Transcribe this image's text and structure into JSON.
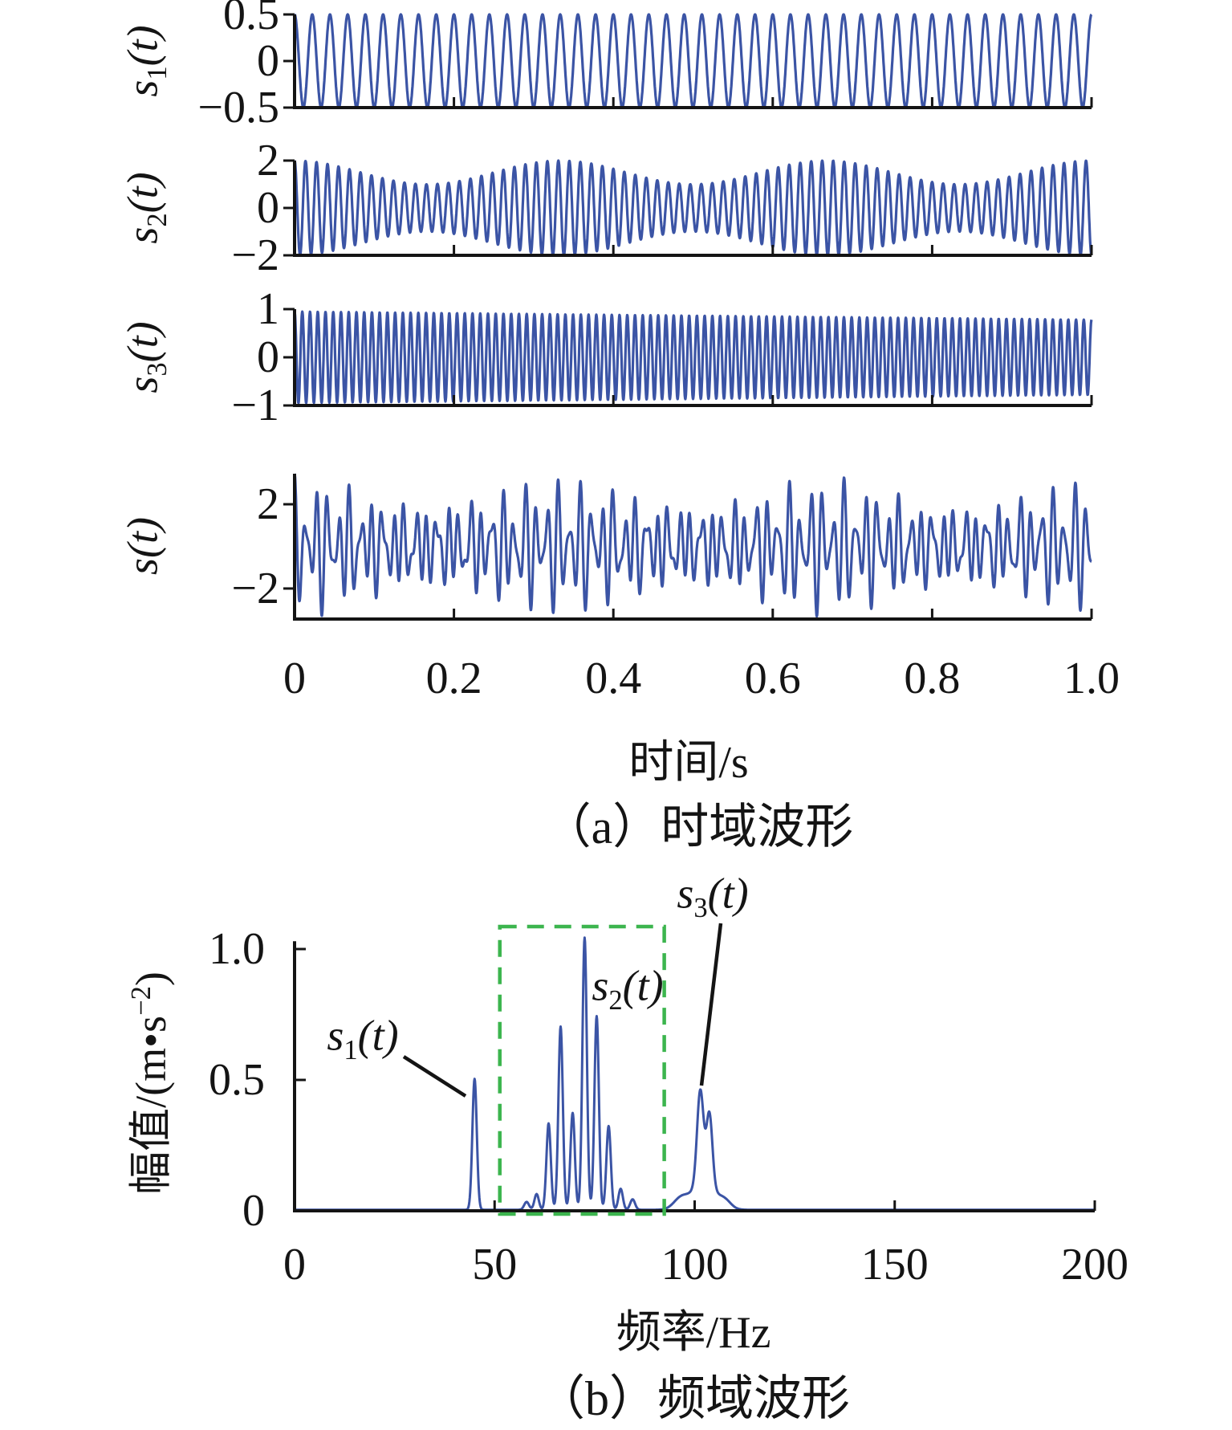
{
  "colors": {
    "waveform_blue": "#3b54a5",
    "highlight_green": "#3cb54e",
    "axis_black": "#141414"
  },
  "panel_a": {
    "caption": "（a）时域波形",
    "xlabel": "时间/s",
    "x_tick_labels": [
      "0",
      "0.2",
      "0.4",
      "0.6",
      "0.8",
      "1.0"
    ],
    "panels": [
      {
        "ylabel": {
          "base": "s",
          "sub": "1",
          "rest": "(t)"
        },
        "y_tick_labels": [
          "0.5",
          "0",
          "−0.5"
        ]
      },
      {
        "ylabel": {
          "base": "s",
          "sub": "2",
          "rest": "(t)"
        },
        "y_tick_labels": [
          "2",
          "0",
          "−2"
        ]
      },
      {
        "ylabel": {
          "base": "s",
          "sub": "3",
          "rest": "(t)"
        },
        "y_tick_labels": [
          "1",
          "0",
          "−1"
        ]
      },
      {
        "ylabel": {
          "base": "s",
          "sub": "",
          "rest": "(t)"
        },
        "y_tick_labels": [
          "2",
          "−2"
        ]
      }
    ]
  },
  "panel_b": {
    "caption": "（b）频域波形",
    "xlabel": "频率/Hz",
    "ylabel": {
      "pre": "幅值/(m•s",
      "sup": "−2",
      "post": ")"
    },
    "x_tick_labels": [
      "0",
      "50",
      "100",
      "150",
      "200"
    ],
    "y_tick_labels": [
      "0",
      "0.5",
      "1.0"
    ],
    "annotations": [
      {
        "label": {
          "base": "s",
          "sub": "1",
          "rest": "(t)"
        }
      },
      {
        "label": {
          "base": "s",
          "sub": "2",
          "rest": "(t)"
        }
      },
      {
        "label": {
          "base": "s",
          "sub": "3",
          "rest": "(t)"
        }
      }
    ]
  },
  "chart_data": [
    {
      "type": "line",
      "title": "（a）时域波形",
      "xlabel": "时间/s",
      "x_range": [
        0,
        1.0
      ],
      "x_ticks": [
        0,
        0.2,
        0.4,
        0.6,
        0.8,
        1.0
      ],
      "grid": false,
      "panels": [
        {
          "name": "s1",
          "ylabel": "s1(t)",
          "y_ticks": [
            0.5,
            0,
            -0.5
          ],
          "y_range": [
            -0.5,
            0.5
          ],
          "signal": {
            "kind": "sine",
            "freq_hz": 45,
            "amplitude": 0.5
          },
          "description": "0.5·cos(2π·45·t)"
        },
        {
          "name": "s2",
          "ylabel": "s2(t)",
          "y_ticks": [
            2,
            0,
            -2
          ],
          "y_range": [
            -2,
            2
          ],
          "signal": {
            "kind": "am",
            "carrier_hz": 72.5,
            "mod_hz": 3,
            "amp_mean": 1.5,
            "amp_depth": 0.5
          },
          "description": "(1.5+0.5·cos(2π·3·t))·cos(2π·72.5·t)"
        },
        {
          "name": "s3",
          "ylabel": "s3(t)",
          "y_ticks": [
            1,
            0,
            -1
          ],
          "y_range": [
            -1,
            1
          ],
          "signal": {
            "kind": "decay",
            "freq_hz": 103,
            "amp_start": 0.95,
            "amp_end": 0.78
          },
          "description": "(0.95−0.17·t)·cos(2π·103·t)"
        },
        {
          "name": "s",
          "ylabel": "s(t)",
          "y_ticks": [
            2,
            -2
          ],
          "y_range": [
            -3.45,
            3.45
          ],
          "signal": {
            "kind": "sum",
            "of": [
              "s1",
              "s2",
              "s3"
            ]
          },
          "description": "s1(t)+s2(t)+s3(t)"
        }
      ]
    },
    {
      "type": "line",
      "title": "（b）频域波形",
      "xlabel": "频率/Hz",
      "ylabel": "幅值/(m·s−2)",
      "x_range": [
        0,
        200
      ],
      "x_ticks": [
        0,
        50,
        100,
        150,
        200
      ],
      "y_range": [
        0,
        1.1
      ],
      "y_ticks": [
        0,
        0.5,
        1.0
      ],
      "grid": false,
      "peaks": [
        {
          "freq_hz": 45.0,
          "amplitude": 0.5,
          "width_hz": 0.55,
          "component": "s1(t)"
        },
        {
          "freq_hz": 58.0,
          "amplitude": 0.03,
          "width_hz": 0.6
        },
        {
          "freq_hz": 60.5,
          "amplitude": 0.06,
          "width_hz": 0.55
        },
        {
          "freq_hz": 63.5,
          "amplitude": 0.33,
          "width_hz": 0.55
        },
        {
          "freq_hz": 66.5,
          "amplitude": 0.7,
          "width_hz": 0.55
        },
        {
          "freq_hz": 69.5,
          "amplitude": 0.37,
          "width_hz": 0.55
        },
        {
          "freq_hz": 72.5,
          "amplitude": 1.04,
          "width_hz": 0.55,
          "component": "s2(t)"
        },
        {
          "freq_hz": 75.5,
          "amplitude": 0.74,
          "width_hz": 0.55
        },
        {
          "freq_hz": 78.5,
          "amplitude": 0.32,
          "width_hz": 0.55
        },
        {
          "freq_hz": 81.5,
          "amplitude": 0.08,
          "width_hz": 0.55
        },
        {
          "freq_hz": 84.5,
          "amplitude": 0.04,
          "width_hz": 0.6
        },
        {
          "freq_hz": 96.5,
          "amplitude": 0.04,
          "width_hz": 1.8
        },
        {
          "freq_hz": 101.4,
          "amplitude": 0.36,
          "width_hz": 0.8,
          "component": "s3(t)"
        },
        {
          "freq_hz": 102.2,
          "amplitude": 0.1,
          "width_hz": 2.8
        },
        {
          "freq_hz": 103.7,
          "amplitude": 0.28,
          "width_hz": 0.75
        },
        {
          "freq_hz": 107.5,
          "amplitude": 0.03,
          "width_hz": 1.6
        }
      ],
      "highlight_box": {
        "freq_range": [
          51.3,
          92.4
        ],
        "amp_top": 1.086,
        "style": "dashed",
        "color": "#3cb54e"
      }
    }
  ]
}
